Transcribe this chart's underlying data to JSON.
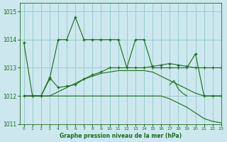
{
  "title": "Graphe pression niveau de la mer (hPa)",
  "bg_color": "#cce8ee",
  "grid_color": "#99cccc",
  "line_color": "#1a6b1a",
  "xlim": [
    -0.5,
    23
  ],
  "ylim": [
    1011.0,
    1015.3
  ],
  "yticks": [
    1011,
    1012,
    1013,
    1014,
    1015
  ],
  "xticks": [
    0,
    1,
    2,
    3,
    4,
    5,
    6,
    7,
    8,
    9,
    10,
    11,
    12,
    13,
    14,
    15,
    16,
    17,
    18,
    19,
    20,
    21,
    22,
    23
  ],
  "lines": [
    {
      "x": [
        0,
        1,
        2,
        3,
        4,
        5,
        6,
        7,
        8,
        9,
        10,
        11,
        12,
        13,
        14,
        15,
        16,
        17,
        18,
        19,
        20,
        21,
        22,
        23
      ],
      "y": [
        1013.9,
        1012.0,
        1012.0,
        1012.6,
        1014.0,
        1014.0,
        1014.8,
        1014.0,
        1014.0,
        1014.0,
        1014.0,
        1014.0,
        1013.0,
        1014.0,
        1014.0,
        1013.0,
        1013.0,
        1013.0,
        1013.0,
        1013.0,
        1013.5,
        1012.0,
        1012.0,
        1012.0
      ],
      "marker": true
    },
    {
      "x": [
        0,
        1,
        2,
        3,
        4,
        5,
        6,
        7,
        8,
        9,
        10,
        11,
        12,
        13,
        14,
        15,
        16,
        17,
        18,
        19,
        20,
        21,
        22,
        23
      ],
      "y": [
        1012.0,
        1012.0,
        1012.0,
        1012.65,
        1012.3,
        1012.35,
        1012.4,
        1012.6,
        1012.75,
        1012.85,
        1013.0,
        1013.0,
        1013.0,
        1013.0,
        1013.0,
        1013.05,
        1013.1,
        1013.15,
        1013.1,
        1013.05,
        1013.0,
        1013.0,
        1013.0,
        1013.0
      ],
      "marker": true
    },
    {
      "x": [
        0,
        1,
        2,
        3,
        4,
        5,
        6,
        7,
        8,
        9,
        10,
        11,
        12,
        13,
        14,
        15,
        16,
        17,
        18,
        19,
        20,
        21,
        22,
        23
      ],
      "y": [
        1012.0,
        1012.0,
        1012.0,
        1012.0,
        1012.15,
        1012.3,
        1012.45,
        1012.6,
        1012.7,
        1012.8,
        1012.85,
        1012.9,
        1012.9,
        1012.9,
        1012.9,
        1012.85,
        1012.7,
        1012.55,
        1012.4,
        1012.25,
        1012.1,
        1012.0,
        1012.0,
        1012.0
      ],
      "marker": false
    },
    {
      "x": [
        0,
        1,
        2,
        3,
        4,
        5,
        6,
        7,
        8,
        9,
        10,
        11,
        12,
        13,
        14,
        15,
        16,
        17,
        18,
        19,
        20,
        21,
        22,
        23
      ],
      "y": [
        1012.0,
        1012.0,
        1012.0,
        1012.0,
        1012.0,
        1012.0,
        1012.0,
        1012.0,
        1012.0,
        1012.0,
        1012.0,
        1012.0,
        1012.0,
        1012.0,
        1012.0,
        1012.0,
        1012.0,
        1011.9,
        1011.75,
        1011.6,
        1011.4,
        1011.2,
        1011.1,
        1011.05
      ],
      "marker": false
    },
    {
      "x": [
        17,
        17.5,
        18,
        18.5,
        19
      ],
      "y": [
        1012.4,
        1012.55,
        1012.25,
        1012.1,
        1012.0
      ],
      "marker": false
    }
  ]
}
